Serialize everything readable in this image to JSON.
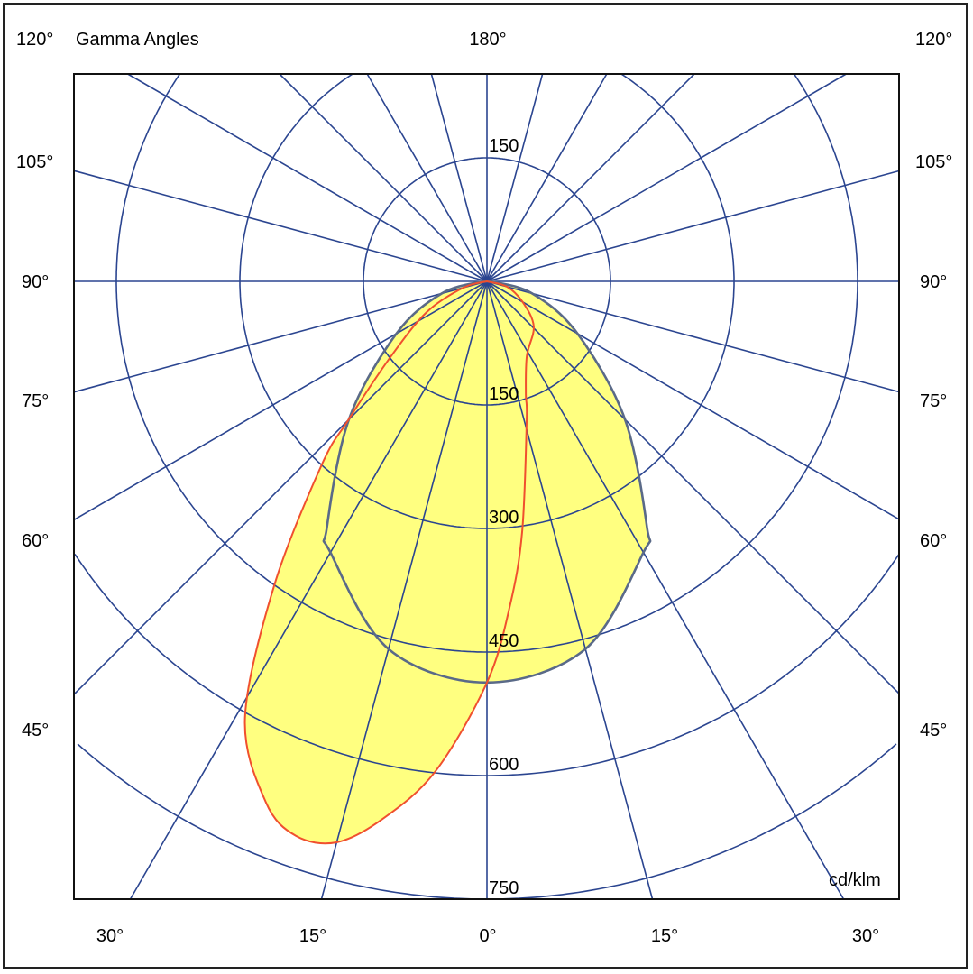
{
  "chart_data": {
    "type": "polar",
    "title": "Gamma Angles",
    "unit": "cd/klm",
    "radial_ticks": [
      "150",
      "300",
      "450",
      "600",
      "750"
    ],
    "radial_top_label": "150",
    "radial_step": 150,
    "radial_max": 750,
    "angle_step_deg": 15,
    "angle_labels": {
      "top_left": "120°",
      "top_center": "180°",
      "top_right": "120°",
      "left": [
        "105°",
        "90°",
        "75°",
        "60°",
        "45°"
      ],
      "right": [
        "105°",
        "90°",
        "75°",
        "60°",
        "45°"
      ],
      "bottom": [
        "30°",
        "15°",
        "0°",
        "15°",
        "30°"
      ]
    },
    "grid": true,
    "fill_color": "#FFFF80",
    "grid_color": "#2B4590",
    "series": [
      {
        "color": "#5A6A88",
        "gamma_deg": [
          -90,
          -75,
          -60,
          -45,
          -33,
          -30,
          -15,
          0,
          15,
          30,
          33,
          45,
          60,
          75,
          90
        ],
        "intensity": [
          5,
          57,
          127,
          237,
          357,
          380,
          462,
          487,
          462,
          380,
          357,
          237,
          127,
          57,
          5
        ]
      },
      {
        "color": "#F0502E",
        "gamma_deg": [
          -90,
          -75,
          -63,
          -52,
          -45,
          -42,
          -35,
          -29,
          -23,
          -19,
          -15,
          -11,
          -6,
          0,
          4,
          8,
          16,
          19,
          28,
          46,
          60,
          75,
          90
        ],
        "intensity": [
          0,
          30,
          82,
          148,
          238,
          300,
          450,
          606,
          687,
          712,
          705,
          665,
          598,
          487,
          396,
          307,
          175,
          145,
          103,
          79,
          50,
          25,
          0
        ]
      }
    ]
  }
}
